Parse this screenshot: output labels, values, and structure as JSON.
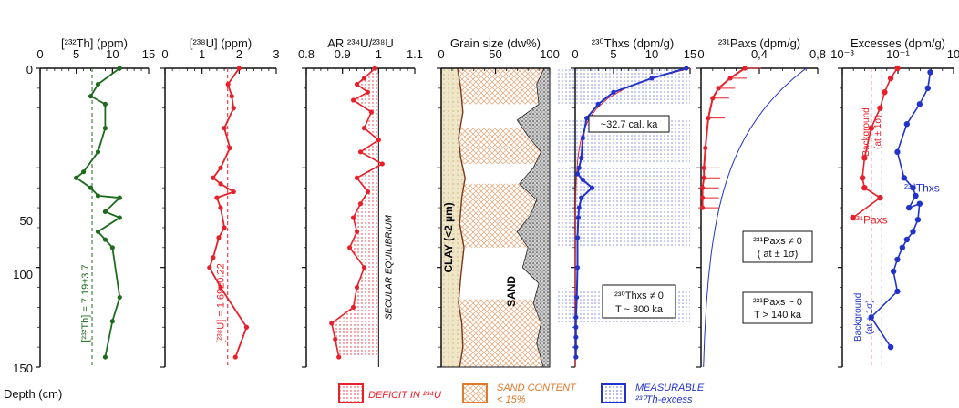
{
  "figure": {
    "depth_label": "Depth (cm)",
    "depth_ticks": [
      "0",
      "50",
      "100",
      "150"
    ],
    "legend": [
      {
        "label": "DEFICIT IN ²³⁴U",
        "color": "#e8202a"
      },
      {
        "label_line1": "SAND CONTENT",
        "label_line2": "< 15%",
        "color": "#e07a2c"
      },
      {
        "label_line1": "MEASURABLE",
        "label_line2": "²³⁰Th-excess",
        "color": "#2233cc"
      }
    ]
  },
  "chart_data": [
    {
      "type": "line",
      "title": "[²³²Th] (ppm)",
      "tick_labels": [
        "0",
        "5",
        "10",
        "15"
      ],
      "xlim": [
        0,
        15
      ],
      "ylim": [
        0,
        150
      ],
      "y_inverted": true,
      "color": "#1e6b1e",
      "reference": {
        "value": 7.19,
        "label": "[²³²Th] = 7.19±3.7"
      },
      "x": [
        11,
        8,
        7,
        9,
        9,
        8,
        6,
        5,
        7,
        8,
        11,
        9,
        11,
        8,
        9,
        10,
        11,
        10,
        9
      ],
      "y": [
        0,
        8,
        14,
        18,
        30,
        42,
        52,
        55,
        60,
        64,
        65,
        72,
        75,
        82,
        86,
        90,
        115,
        127,
        145
      ]
    },
    {
      "type": "line",
      "title": "[²³⁸U] (ppm)",
      "tick_labels": [
        "0",
        "1",
        "2",
        "3"
      ],
      "xlim": [
        0,
        3
      ],
      "ylim": [
        0,
        150
      ],
      "y_inverted": true,
      "color": "#e8202a",
      "reference": {
        "value": 1.69,
        "label": "[²³⁸U] = 1.69±0.22"
      },
      "x": [
        2.0,
        1.7,
        1.8,
        1.85,
        1.6,
        1.75,
        1.5,
        1.3,
        1.5,
        1.85,
        1.4,
        1.5,
        1.6,
        1.45,
        1.3,
        1.2,
        1.5,
        2.2,
        1.9
      ],
      "y": [
        0,
        8,
        14,
        20,
        30,
        40,
        50,
        55,
        58,
        62,
        65,
        70,
        80,
        85,
        95,
        100,
        110,
        130,
        145
      ]
    },
    {
      "type": "area",
      "title": "AR ²³⁴U/²³⁸U",
      "tick_labels": [
        "0.8",
        "0.9",
        "1",
        "1.1"
      ],
      "xlim": [
        0.8,
        1.1
      ],
      "ylim": [
        0,
        150
      ],
      "y_inverted": true,
      "color": "#e8202a",
      "reference": {
        "value": 1.0,
        "label": "SECULAR EQUILIBRIUM"
      },
      "x": [
        0.99,
        0.96,
        0.94,
        0.97,
        0.93,
        0.98,
        0.96,
        1.0,
        0.95,
        1.01,
        0.94,
        0.97,
        0.95,
        0.93,
        0.94,
        0.92,
        0.96,
        0.94,
        0.93,
        0.87,
        0.88,
        0.89
      ],
      "y": [
        0,
        5,
        8,
        12,
        16,
        22,
        30,
        36,
        42,
        48,
        55,
        62,
        68,
        75,
        82,
        90,
        100,
        110,
        120,
        128,
        136,
        145
      ]
    },
    {
      "type": "area",
      "title": "Grain size (dw%)",
      "tick_labels": [
        "0",
        "50",
        "100"
      ],
      "xlim": [
        0,
        100
      ],
      "ylim": [
        0,
        150
      ],
      "y_inverted": true,
      "labels": {
        "clay": "CLAY (<2 µm)",
        "sand": "SAND"
      },
      "clay_x": [
        15,
        18,
        20,
        16,
        18,
        22,
        19,
        17,
        21,
        18,
        16,
        19,
        20,
        17
      ],
      "clay_y": [
        0,
        10,
        22,
        35,
        45,
        55,
        65,
        78,
        90,
        105,
        118,
        128,
        140,
        150
      ],
      "sand_x": [
        95,
        88,
        90,
        70,
        80,
        92,
        85,
        72,
        88,
        82,
        70,
        80,
        75,
        90,
        85,
        92,
        88,
        94
      ],
      "sand_y": [
        0,
        8,
        18,
        26,
        34,
        42,
        50,
        58,
        66,
        74,
        82,
        90,
        100,
        108,
        118,
        128,
        138,
        150
      ],
      "sand_under_15_bands": [
        [
          0,
          18
        ],
        [
          30,
          48
        ],
        [
          58,
          90
        ],
        [
          116,
          150
        ]
      ]
    },
    {
      "type": "line",
      "title": "²³⁰Thxs (dpm/g)",
      "tick_labels": [
        "0",
        "5",
        "10",
        "15"
      ],
      "xlim": [
        0,
        15
      ],
      "ylim": [
        0,
        150
      ],
      "y_inverted": true,
      "color": "#2233cc",
      "fit_color": "#e8202a",
      "measurable_bands": [
        [
          0,
          18
        ],
        [
          26,
          48
        ],
        [
          50,
          90
        ],
        [
          112,
          128
        ]
      ],
      "annotations": [
        "~32.7 cal. ka",
        "²³⁰Thxs ≠ 0",
        "T ~ 300 ka"
      ],
      "x": [
        14.5,
        10,
        5,
        3,
        1.5,
        1,
        0.8,
        0.5,
        0.3,
        1,
        2.2,
        0.8,
        0.5,
        0.4,
        0.3,
        0.3,
        0.2,
        0.1,
        0.1,
        0.1,
        0.1,
        0.1
      ],
      "y": [
        0,
        5,
        12,
        18,
        25,
        35,
        45,
        50,
        53,
        56,
        60,
        65,
        70,
        75,
        85,
        100,
        115,
        125,
        130,
        135,
        140,
        145
      ]
    },
    {
      "type": "line",
      "title": "²³¹Paxs (dpm/g)",
      "tick_labels": [
        "0",
        "0,4",
        "0,8"
      ],
      "xlim": [
        0,
        0.8
      ],
      "ylim": [
        0,
        150
      ],
      "y_inverted": true,
      "color": "#e8202a",
      "fit_color": "#2233cc",
      "annotations": [
        "²³¹Paxs ≠ 0",
        "( at ± 1σ)",
        "²³¹Paxs ~ 0",
        "T > 140 ka"
      ],
      "x": [
        0.3,
        0.2,
        0.12,
        0.08,
        0.05,
        0.03,
        0.02,
        0.02,
        0.01,
        0.01,
        0.01
      ],
      "y": [
        0,
        5,
        10,
        15,
        25,
        40,
        50,
        55,
        60,
        65,
        70
      ]
    },
    {
      "type": "scatter",
      "title": "Excesses (dpm/g)",
      "tick_labels": [
        "10⁻³",
        "10⁻¹",
        "10"
      ],
      "xlim": [
        0.001,
        100
      ],
      "x_scale": "log",
      "ylim": [
        0,
        150
      ],
      "y_inverted": true,
      "series": [
        {
          "name": "²³⁰Thxs",
          "color": "#2233cc",
          "x": [
            9,
            7,
            3,
            0.8,
            0.3,
            0.6,
            1.5,
            2,
            1,
            3,
            2.5,
            1.5,
            0.8,
            0.5,
            0.3,
            0.2,
            0.3,
            0.02,
            0.15
          ],
          "y": [
            2,
            10,
            18,
            28,
            42,
            55,
            60,
            64,
            70,
            68,
            76,
            82,
            86,
            90,
            96,
            102,
            112,
            125,
            140
          ]
        },
        {
          "name": "²³¹Paxs",
          "color": "#e8202a",
          "x": [
            0.3,
            0.15,
            0.08,
            0.05,
            0.02,
            0.01,
            0.008,
            0.01,
            0.05,
            0.003
          ],
          "y": [
            0,
            5,
            12,
            20,
            30,
            45,
            55,
            60,
            65,
            75
          ]
        }
      ],
      "labels": [
        "Background",
        "(at ± 1σ)"
      ]
    }
  ]
}
